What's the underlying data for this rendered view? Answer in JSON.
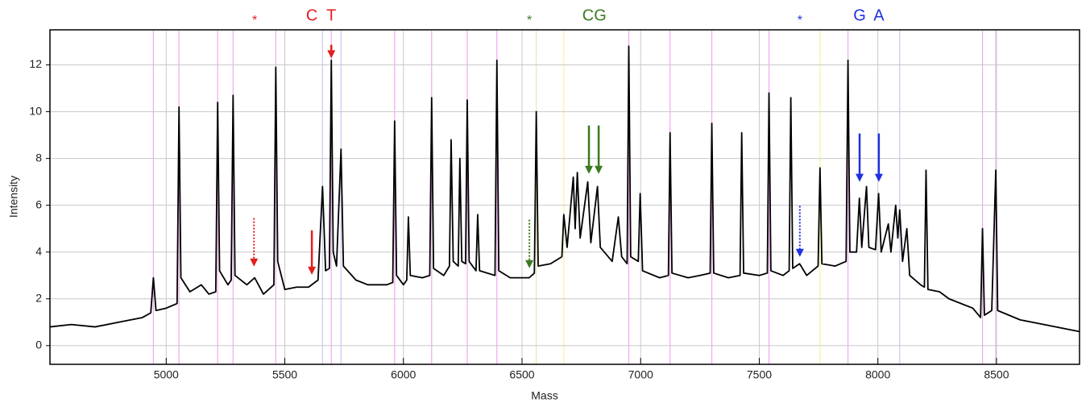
{
  "chart_data": {
    "type": "line",
    "x_label": "Mass",
    "y_label": "Intensity",
    "xlim": [
      4510,
      8850
    ],
    "ylim": [
      -0.8,
      13.5
    ],
    "xticks": [
      5000,
      5500,
      6000,
      6500,
      7000,
      7500,
      8000,
      8500
    ],
    "yticks": [
      0,
      2,
      4,
      6,
      8,
      10,
      12
    ],
    "grid": true,
    "series": [
      {
        "color": "#000000",
        "x": [
          4510,
          4600,
          4700,
          4800,
          4900,
          4935,
          4946,
          4957,
          5000,
          5046,
          5054,
          5062,
          5100,
          5148,
          5180,
          5209,
          5217,
          5225,
          5260,
          5274,
          5282,
          5290,
          5340,
          5373,
          5410,
          5454,
          5462,
          5470,
          5500,
          5550,
          5600,
          5640,
          5659,
          5672,
          5688,
          5696,
          5704,
          5718,
          5737,
          5747,
          5800,
          5850,
          5930,
          5955,
          5963,
          5971,
          6000,
          6014,
          6021,
          6029,
          6080,
          6111,
          6119,
          6127,
          6170,
          6194,
          6201,
          6210,
          6231,
          6238,
          6246,
          6262,
          6269,
          6277,
          6306,
          6313,
          6321,
          6386,
          6394,
          6402,
          6450,
          6530,
          6552,
          6560,
          6568,
          6620,
          6668,
          6676,
          6690,
          6716,
          6724,
          6733,
          6745,
          6777,
          6790,
          6818,
          6830,
          6880,
          6906,
          6920,
          6943,
          6950,
          6958,
          6990,
          6998,
          7008,
          7080,
          7117,
          7124,
          7132,
          7200,
          7250,
          7293,
          7300,
          7308,
          7370,
          7419,
          7426,
          7434,
          7500,
          7534,
          7541,
          7549,
          7600,
          7626,
          7633,
          7641,
          7670,
          7700,
          7748,
          7756,
          7764,
          7820,
          7866,
          7874,
          7882,
          7910,
          7922,
          7932,
          7952,
          7962,
          7990,
          8003,
          8014,
          8044,
          8055,
          8075,
          8084,
          8092,
          8104,
          8122,
          8134,
          8180,
          8196,
          8203,
          8211,
          8260,
          8300,
          8400,
          8433,
          8441,
          8449,
          8480,
          8497,
          8505,
          8600,
          8700,
          8800,
          8850
        ],
        "values": [
          0.8,
          0.9,
          0.8,
          1.0,
          1.2,
          1.4,
          2.9,
          1.5,
          1.6,
          1.8,
          10.2,
          2.9,
          2.3,
          2.6,
          2.2,
          2.3,
          10.4,
          3.2,
          2.6,
          2.8,
          10.7,
          3.0,
          2.6,
          2.9,
          2.2,
          2.6,
          11.9,
          3.6,
          2.4,
          2.5,
          2.5,
          2.8,
          6.8,
          3.2,
          3.3,
          12.2,
          4.0,
          3.4,
          8.4,
          3.4,
          2.8,
          2.6,
          2.6,
          2.7,
          9.6,
          3.0,
          2.6,
          2.8,
          5.5,
          3.0,
          2.9,
          3.0,
          10.6,
          3.3,
          3.0,
          3.4,
          8.8,
          3.6,
          3.4,
          8.0,
          3.6,
          3.5,
          10.5,
          3.6,
          3.2,
          5.6,
          3.2,
          3.0,
          12.2,
          3.2,
          2.9,
          2.9,
          3.1,
          10.0,
          3.4,
          3.5,
          3.8,
          5.6,
          4.2,
          7.2,
          5.0,
          7.4,
          4.6,
          7.0,
          4.4,
          6.8,
          4.2,
          3.6,
          5.5,
          3.8,
          3.5,
          12.8,
          3.8,
          3.6,
          6.5,
          3.2,
          2.9,
          3.0,
          9.1,
          3.1,
          2.9,
          3.0,
          3.1,
          9.5,
          3.1,
          2.9,
          3.0,
          9.1,
          3.1,
          3.0,
          3.1,
          10.8,
          3.2,
          3.0,
          3.2,
          10.6,
          3.3,
          3.5,
          3.0,
          3.4,
          7.6,
          3.5,
          3.4,
          3.6,
          12.2,
          4.0,
          4.0,
          6.3,
          4.2,
          6.8,
          4.2,
          4.1,
          6.5,
          4.0,
          5.2,
          4.0,
          6.0,
          4.6,
          5.8,
          3.6,
          5.0,
          3.0,
          2.6,
          2.5,
          7.5,
          2.4,
          2.3,
          2.0,
          1.6,
          1.2,
          5.0,
          1.3,
          1.5,
          7.5,
          1.5,
          1.1,
          0.9,
          0.7,
          0.6
        ]
      }
    ],
    "reference_lines": [
      {
        "x": 4946,
        "color": "#f0a8f0"
      },
      {
        "x": 5054,
        "color": "#f0a8f0"
      },
      {
        "x": 5217,
        "color": "#f0a8f0"
      },
      {
        "x": 5282,
        "color": "#f0a8f0"
      },
      {
        "x": 5462,
        "color": "#f0a8f0"
      },
      {
        "x": 5659,
        "color": "#c8c8f8"
      },
      {
        "x": 5696,
        "color": "#f0a8f0"
      },
      {
        "x": 5737,
        "color": "#c8c8f8"
      },
      {
        "x": 5963,
        "color": "#f0a8f0"
      },
      {
        "x": 6119,
        "color": "#f0a8f0"
      },
      {
        "x": 6269,
        "color": "#f0a8f0"
      },
      {
        "x": 6394,
        "color": "#f0a8f0"
      },
      {
        "x": 6560,
        "color": "#d8f0b0"
      },
      {
        "x": 6676,
        "color": "#f8f0a0"
      },
      {
        "x": 6950,
        "color": "#f0a8f0"
      },
      {
        "x": 7124,
        "color": "#f0a8f0"
      },
      {
        "x": 7300,
        "color": "#f0a8f0"
      },
      {
        "x": 7541,
        "color": "#f0a8f0"
      },
      {
        "x": 7756,
        "color": "#f8f0a0"
      },
      {
        "x": 7874,
        "color": "#f0a8f0"
      },
      {
        "x": 8092,
        "color": "#c8c8f8"
      },
      {
        "x": 8441,
        "color": "#f0a8f0"
      },
      {
        "x": 8497,
        "color": "#f0a8f0"
      }
    ],
    "annotations": [
      {
        "text": "*",
        "x": 5373,
        "color": "#e02020"
      },
      {
        "text": "C",
        "x": 5614,
        "color": "#e02020"
      },
      {
        "text": "T",
        "x": 5696,
        "color": "#e02020"
      },
      {
        "text": "*",
        "x": 6531,
        "color": "#3a7a1e"
      },
      {
        "text": "CG",
        "x": 6805,
        "color": "#3a7a1e"
      },
      {
        "text": "*",
        "x": 7671,
        "color": "#2030e0"
      },
      {
        "text": "G",
        "x": 7923,
        "color": "#2030e0"
      },
      {
        "text": "A",
        "x": 8004,
        "color": "#2030e0"
      }
    ],
    "arrows": [
      {
        "x": 5370,
        "y": [
          5.45,
          3.38
        ],
        "color": "#e02020",
        "dashed": true
      },
      {
        "x": 5614,
        "y": [
          4.93,
          3.03
        ],
        "color": "#e02020",
        "dashed": false
      },
      {
        "x": 5696,
        "y": [
          12.86,
          12.28
        ],
        "color": "#e02020",
        "dashed": false
      },
      {
        "x": 6531,
        "y": [
          5.38,
          3.31
        ],
        "color": "#3a7a1e",
        "dashed": true
      },
      {
        "x": 6782,
        "y": [
          9.41,
          7.34
        ],
        "color": "#3a7a1e",
        "dashed": false
      },
      {
        "x": 6823,
        "y": [
          9.41,
          7.34
        ],
        "color": "#3a7a1e",
        "dashed": false
      },
      {
        "x": 7671,
        "y": [
          5.97,
          3.79
        ],
        "color": "#2030e0",
        "dashed": true
      },
      {
        "x": 7923,
        "y": [
          9.07,
          7.0
        ],
        "color": "#2030e0",
        "dashed": false
      },
      {
        "x": 8004,
        "y": [
          9.07,
          7.0
        ],
        "color": "#2030e0",
        "dashed": false
      }
    ]
  }
}
